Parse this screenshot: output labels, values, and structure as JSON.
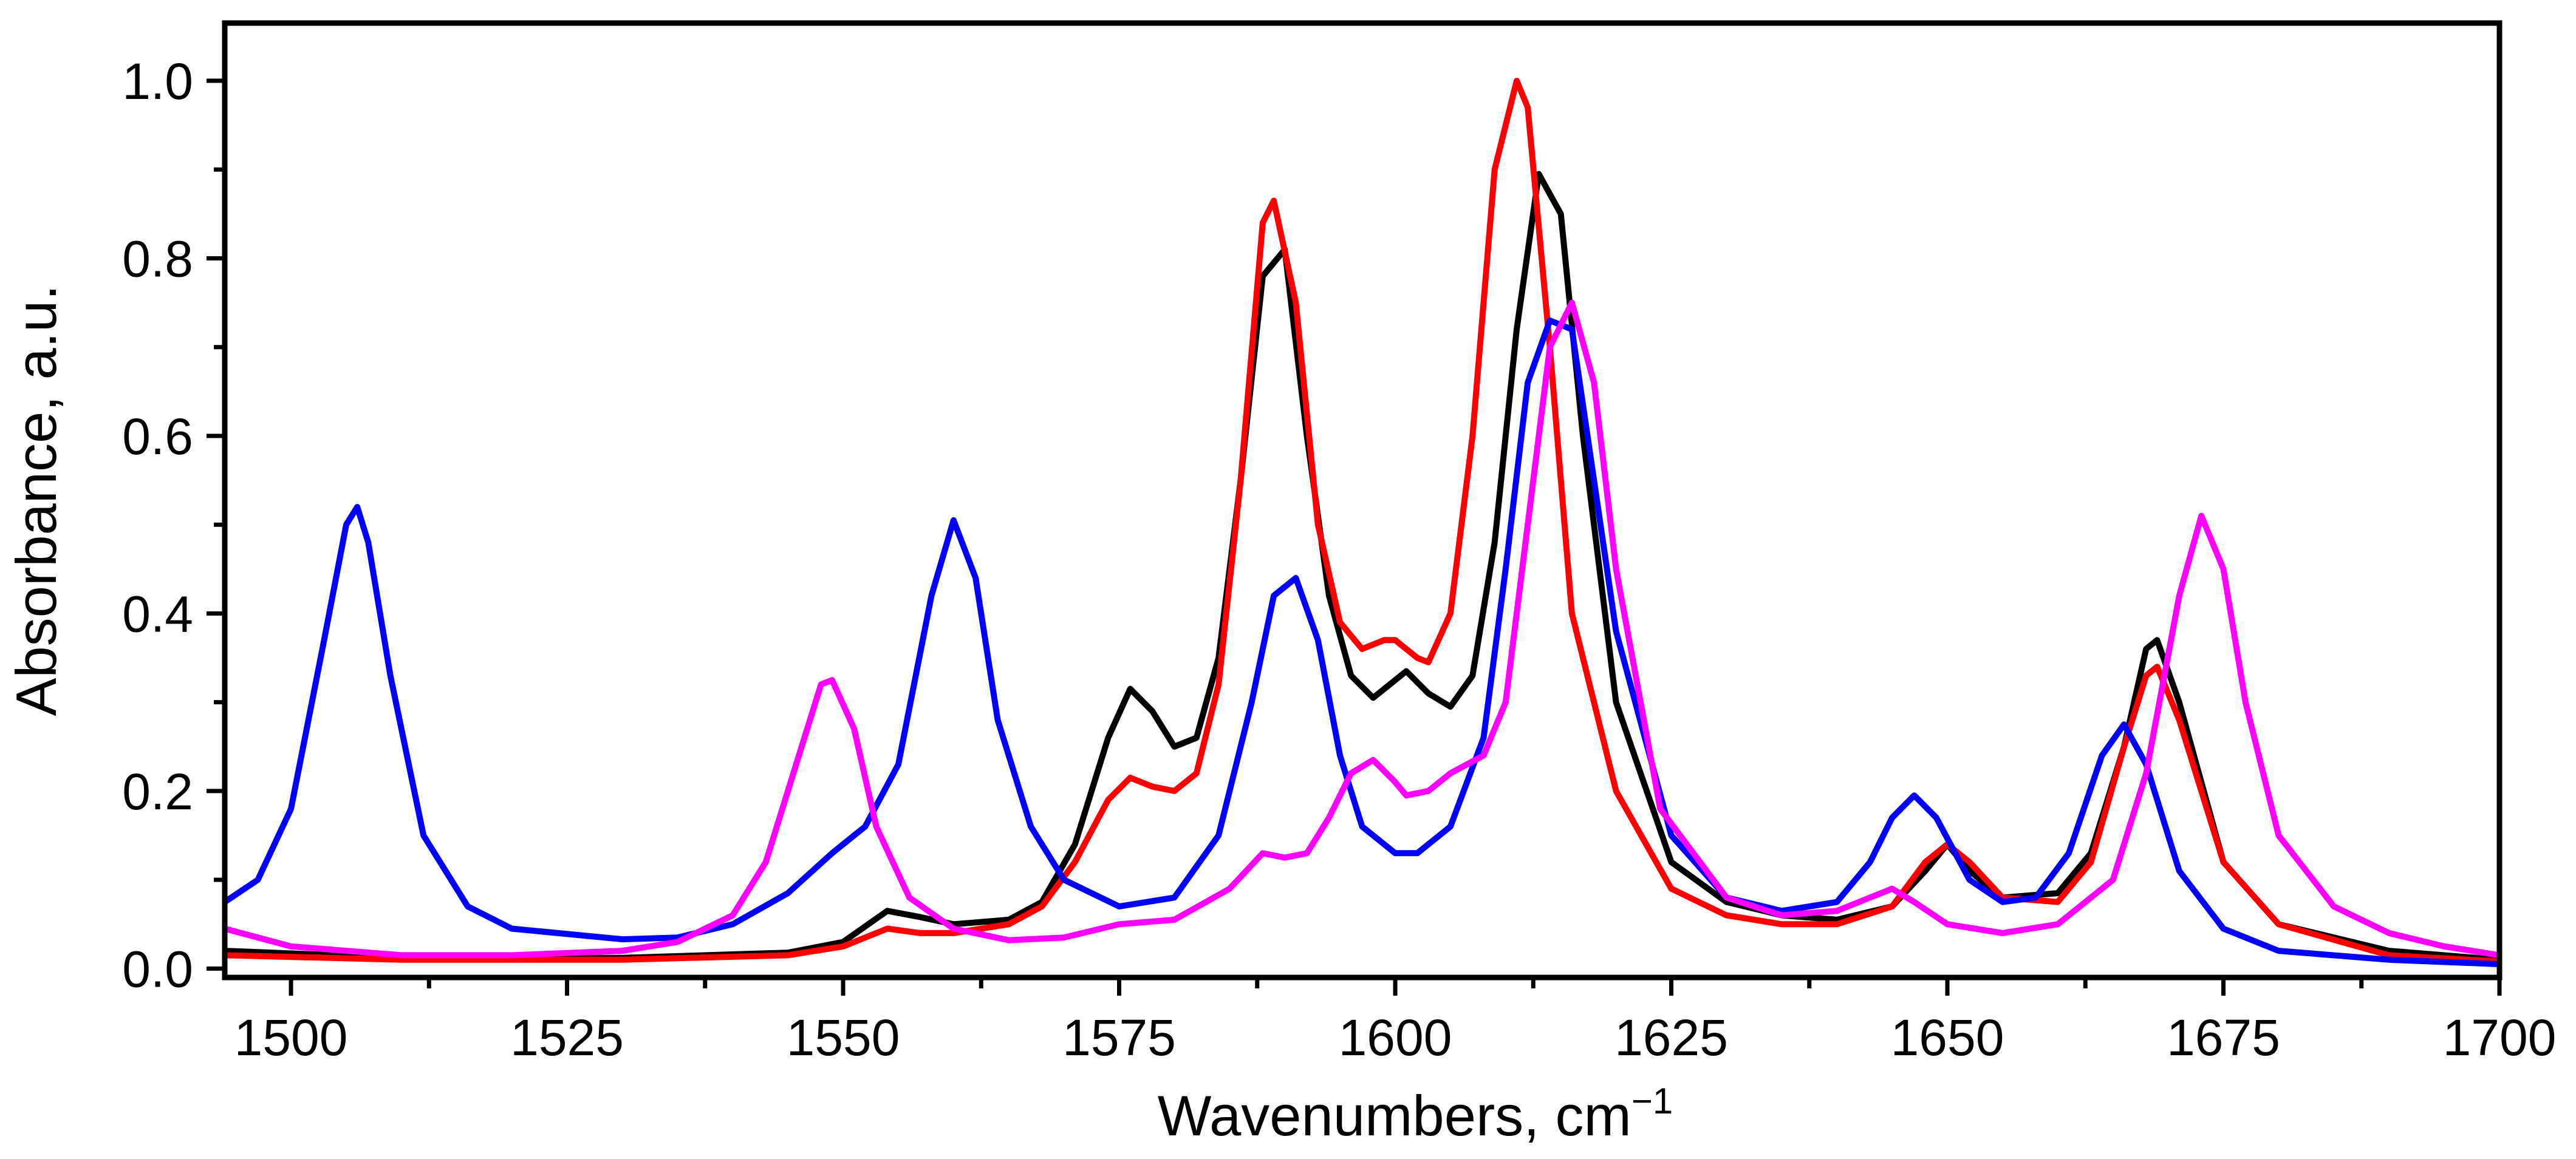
{
  "chart_data": {
    "type": "line",
    "title": "",
    "xlabel": "Wavenumbers, cm",
    "xlabel_superscript": "−1",
    "ylabel": "Absorbance, a.u.",
    "xlim": [
      1494,
      1700
    ],
    "ylim": [
      -0.01,
      1.065
    ],
    "grid": false,
    "x_major_ticks": [
      1500,
      1525,
      1550,
      1575,
      1600,
      1625,
      1650,
      1675,
      1700
    ],
    "x_tick_labels": [
      "1500",
      "1525",
      "1550",
      "1575",
      "1600",
      "1625",
      "1650",
      "1675",
      "1700"
    ],
    "y_major_ticks": [
      0.0,
      0.2,
      0.4,
      0.6,
      0.8,
      1.0
    ],
    "y_tick_labels": [
      "0.0",
      "0.2",
      "0.4",
      "0.6",
      "0.8",
      "1.0"
    ],
    "x_minor_step": 12.5,
    "y_minor_step": 0.1,
    "series": [
      {
        "name": "black",
        "color": "#000000",
        "points": [
          [
            1494,
            0.02
          ],
          [
            1510,
            0.012
          ],
          [
            1530,
            0.012
          ],
          [
            1545,
            0.018
          ],
          [
            1550,
            0.03
          ],
          [
            1554,
            0.065
          ],
          [
            1557,
            0.058
          ],
          [
            1560,
            0.05
          ],
          [
            1565,
            0.055
          ],
          [
            1568,
            0.075
          ],
          [
            1571,
            0.14
          ],
          [
            1574,
            0.26
          ],
          [
            1576,
            0.315
          ],
          [
            1578,
            0.29
          ],
          [
            1580,
            0.25
          ],
          [
            1582,
            0.26
          ],
          [
            1584,
            0.35
          ],
          [
            1586,
            0.55
          ],
          [
            1588,
            0.78
          ],
          [
            1590,
            0.81
          ],
          [
            1592,
            0.6
          ],
          [
            1594,
            0.42
          ],
          [
            1596,
            0.33
          ],
          [
            1598,
            0.305
          ],
          [
            1601,
            0.335
          ],
          [
            1603,
            0.31
          ],
          [
            1605,
            0.295
          ],
          [
            1607,
            0.33
          ],
          [
            1609,
            0.48
          ],
          [
            1611,
            0.72
          ],
          [
            1613,
            0.895
          ],
          [
            1615,
            0.85
          ],
          [
            1617,
            0.6
          ],
          [
            1620,
            0.3
          ],
          [
            1625,
            0.12
          ],
          [
            1630,
            0.075
          ],
          [
            1635,
            0.06
          ],
          [
            1640,
            0.055
          ],
          [
            1645,
            0.07
          ],
          [
            1648,
            0.11
          ],
          [
            1650,
            0.14
          ],
          [
            1652,
            0.11
          ],
          [
            1655,
            0.08
          ],
          [
            1660,
            0.085
          ],
          [
            1663,
            0.13
          ],
          [
            1666,
            0.25
          ],
          [
            1668,
            0.36
          ],
          [
            1669,
            0.37
          ],
          [
            1671,
            0.3
          ],
          [
            1675,
            0.12
          ],
          [
            1680,
            0.05
          ],
          [
            1690,
            0.02
          ],
          [
            1700,
            0.01
          ]
        ]
      },
      {
        "name": "red",
        "color": "#ff0000",
        "points": [
          [
            1494,
            0.015
          ],
          [
            1510,
            0.01
          ],
          [
            1530,
            0.01
          ],
          [
            1545,
            0.015
          ],
          [
            1550,
            0.025
          ],
          [
            1554,
            0.045
          ],
          [
            1557,
            0.04
          ],
          [
            1560,
            0.04
          ],
          [
            1565,
            0.05
          ],
          [
            1568,
            0.07
          ],
          [
            1571,
            0.12
          ],
          [
            1574,
            0.19
          ],
          [
            1576,
            0.215
          ],
          [
            1578,
            0.205
          ],
          [
            1580,
            0.2
          ],
          [
            1582,
            0.22
          ],
          [
            1584,
            0.32
          ],
          [
            1586,
            0.55
          ],
          [
            1588,
            0.84
          ],
          [
            1589,
            0.865
          ],
          [
            1591,
            0.75
          ],
          [
            1593,
            0.5
          ],
          [
            1595,
            0.39
          ],
          [
            1597,
            0.36
          ],
          [
            1599,
            0.37
          ],
          [
            1600,
            0.37
          ],
          [
            1602,
            0.35
          ],
          [
            1603,
            0.345
          ],
          [
            1605,
            0.4
          ],
          [
            1607,
            0.6
          ],
          [
            1609,
            0.9
          ],
          [
            1611,
            1.0
          ],
          [
            1612,
            0.97
          ],
          [
            1614,
            0.7
          ],
          [
            1616,
            0.4
          ],
          [
            1620,
            0.2
          ],
          [
            1625,
            0.09
          ],
          [
            1630,
            0.06
          ],
          [
            1635,
            0.05
          ],
          [
            1640,
            0.05
          ],
          [
            1645,
            0.07
          ],
          [
            1648,
            0.12
          ],
          [
            1650,
            0.14
          ],
          [
            1652,
            0.12
          ],
          [
            1655,
            0.08
          ],
          [
            1660,
            0.075
          ],
          [
            1663,
            0.12
          ],
          [
            1666,
            0.25
          ],
          [
            1668,
            0.33
          ],
          [
            1669,
            0.34
          ],
          [
            1671,
            0.28
          ],
          [
            1675,
            0.12
          ],
          [
            1680,
            0.05
          ],
          [
            1690,
            0.015
          ],
          [
            1700,
            0.008
          ]
        ]
      },
      {
        "name": "blue",
        "color": "#0000ff",
        "points": [
          [
            1494,
            0.075
          ],
          [
            1497,
            0.1
          ],
          [
            1500,
            0.18
          ],
          [
            1503,
            0.37
          ],
          [
            1505,
            0.5
          ],
          [
            1506,
            0.52
          ],
          [
            1507,
            0.48
          ],
          [
            1509,
            0.33
          ],
          [
            1512,
            0.15
          ],
          [
            1516,
            0.07
          ],
          [
            1520,
            0.045
          ],
          [
            1530,
            0.033
          ],
          [
            1535,
            0.035
          ],
          [
            1540,
            0.05
          ],
          [
            1545,
            0.085
          ],
          [
            1549,
            0.13
          ],
          [
            1552,
            0.16
          ],
          [
            1555,
            0.23
          ],
          [
            1558,
            0.42
          ],
          [
            1560,
            0.505
          ],
          [
            1562,
            0.44
          ],
          [
            1564,
            0.28
          ],
          [
            1567,
            0.16
          ],
          [
            1570,
            0.1
          ],
          [
            1575,
            0.07
          ],
          [
            1580,
            0.08
          ],
          [
            1584,
            0.15
          ],
          [
            1587,
            0.3
          ],
          [
            1589,
            0.42
          ],
          [
            1591,
            0.44
          ],
          [
            1593,
            0.37
          ],
          [
            1595,
            0.24
          ],
          [
            1597,
            0.16
          ],
          [
            1600,
            0.13
          ],
          [
            1602,
            0.13
          ],
          [
            1605,
            0.16
          ],
          [
            1608,
            0.26
          ],
          [
            1610,
            0.45
          ],
          [
            1612,
            0.66
          ],
          [
            1614,
            0.73
          ],
          [
            1616,
            0.72
          ],
          [
            1618,
            0.55
          ],
          [
            1620,
            0.38
          ],
          [
            1625,
            0.15
          ],
          [
            1630,
            0.08
          ],
          [
            1635,
            0.065
          ],
          [
            1640,
            0.075
          ],
          [
            1643,
            0.12
          ],
          [
            1645,
            0.17
          ],
          [
            1647,
            0.195
          ],
          [
            1649,
            0.17
          ],
          [
            1652,
            0.1
          ],
          [
            1655,
            0.075
          ],
          [
            1658,
            0.08
          ],
          [
            1661,
            0.13
          ],
          [
            1664,
            0.24
          ],
          [
            1666,
            0.275
          ],
          [
            1668,
            0.23
          ],
          [
            1671,
            0.11
          ],
          [
            1675,
            0.045
          ],
          [
            1680,
            0.02
          ],
          [
            1690,
            0.01
          ],
          [
            1700,
            0.005
          ]
        ]
      },
      {
        "name": "magenta",
        "color": "#ff00ff",
        "points": [
          [
            1494,
            0.045
          ],
          [
            1500,
            0.025
          ],
          [
            1510,
            0.015
          ],
          [
            1520,
            0.015
          ],
          [
            1530,
            0.02
          ],
          [
            1535,
            0.03
          ],
          [
            1540,
            0.06
          ],
          [
            1543,
            0.12
          ],
          [
            1546,
            0.24
          ],
          [
            1548,
            0.32
          ],
          [
            1549,
            0.325
          ],
          [
            1551,
            0.27
          ],
          [
            1553,
            0.16
          ],
          [
            1556,
            0.08
          ],
          [
            1560,
            0.045
          ],
          [
            1565,
            0.032
          ],
          [
            1570,
            0.035
          ],
          [
            1575,
            0.05
          ],
          [
            1580,
            0.055
          ],
          [
            1585,
            0.09
          ],
          [
            1588,
            0.13
          ],
          [
            1590,
            0.125
          ],
          [
            1592,
            0.13
          ],
          [
            1594,
            0.17
          ],
          [
            1596,
            0.22
          ],
          [
            1598,
            0.235
          ],
          [
            1600,
            0.21
          ],
          [
            1601,
            0.195
          ],
          [
            1603,
            0.2
          ],
          [
            1605,
            0.22
          ],
          [
            1608,
            0.24
          ],
          [
            1610,
            0.3
          ],
          [
            1612,
            0.5
          ],
          [
            1614,
            0.7
          ],
          [
            1616,
            0.75
          ],
          [
            1618,
            0.66
          ],
          [
            1620,
            0.45
          ],
          [
            1624,
            0.18
          ],
          [
            1630,
            0.08
          ],
          [
            1635,
            0.06
          ],
          [
            1640,
            0.065
          ],
          [
            1643,
            0.08
          ],
          [
            1645,
            0.09
          ],
          [
            1647,
            0.075
          ],
          [
            1650,
            0.05
          ],
          [
            1655,
            0.04
          ],
          [
            1660,
            0.05
          ],
          [
            1665,
            0.1
          ],
          [
            1668,
            0.22
          ],
          [
            1671,
            0.42
          ],
          [
            1673,
            0.51
          ],
          [
            1675,
            0.45
          ],
          [
            1677,
            0.3
          ],
          [
            1680,
            0.15
          ],
          [
            1685,
            0.07
          ],
          [
            1690,
            0.04
          ],
          [
            1695,
            0.025
          ],
          [
            1700,
            0.015
          ]
        ]
      }
    ]
  }
}
